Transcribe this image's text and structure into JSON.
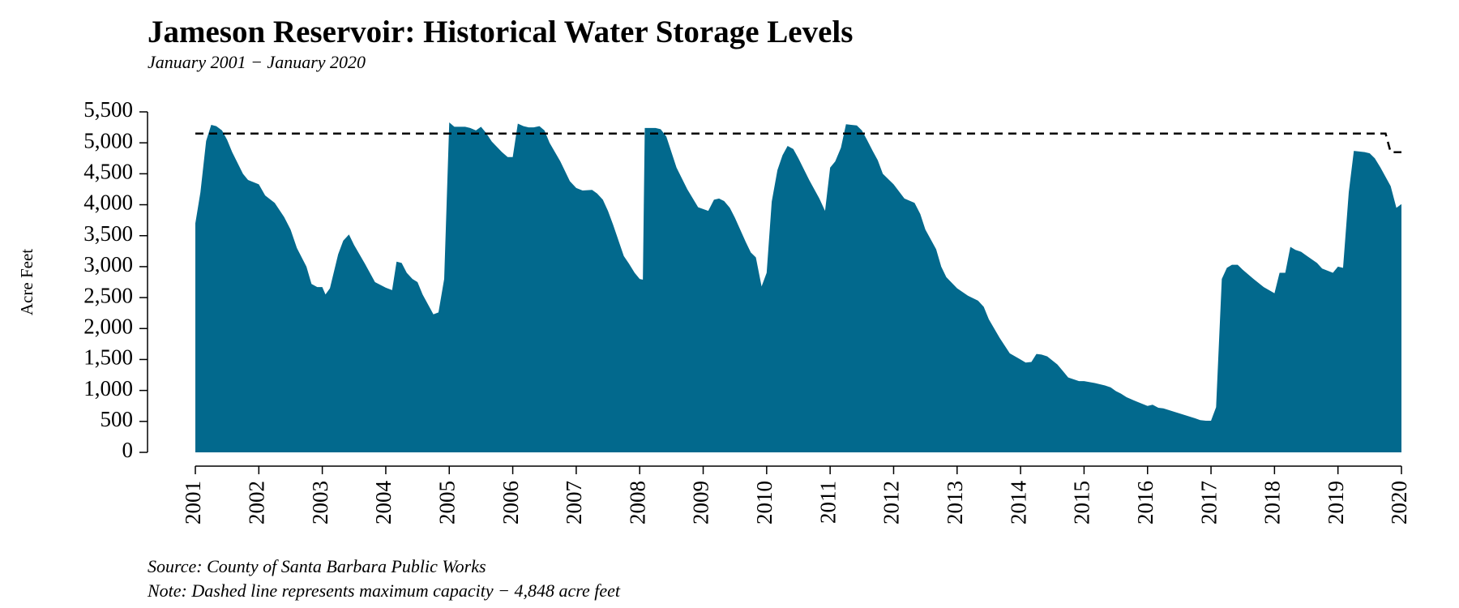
{
  "chart_data": {
    "type": "area",
    "title": "Jameson Reservoir: Historical Water Storage Levels",
    "subtitle": "January 2001 − January 2020",
    "y_label": "Acre Feet",
    "source": "Source: County of Santa Barbara Public Works",
    "note": "Note: Dashed line represents maximum capacity − 4,848 acre feet",
    "xlim": [
      2001,
      2020
    ],
    "xticks": [
      2001,
      2002,
      2003,
      2004,
      2005,
      2006,
      2007,
      2008,
      2009,
      2010,
      2011,
      2012,
      2013,
      2014,
      2015,
      2016,
      2017,
      2018,
      2019,
      2020
    ],
    "ylim": [
      0,
      5500
    ],
    "yticks": [
      0,
      500,
      {
        "value": 1000,
        "label": "1,000"
      },
      {
        "value": 1500,
        "label": "1,500"
      },
      {
        "value": 2000,
        "label": "2,000"
      },
      {
        "value": 2500,
        "label": "2,500"
      },
      {
        "value": 3000,
        "label": "3,000"
      },
      {
        "value": 3500,
        "label": "3,500"
      },
      {
        "value": 4000,
        "label": "4,000"
      },
      {
        "value": 4500,
        "label": "4,500"
      },
      {
        "value": 5000,
        "label": "5,000"
      },
      {
        "value": 5500,
        "label": "5,500"
      }
    ],
    "storage": {
      "color": "#02698d",
      "x": [
        2001.0,
        2001.08,
        2001.17,
        2001.25,
        2001.33,
        2001.42,
        2001.5,
        2001.58,
        2001.75,
        2001.83,
        2002.0,
        2002.1,
        2002.25,
        2002.4,
        2002.5,
        2002.6,
        2002.75,
        2002.83,
        2002.92,
        2003.0,
        2003.05,
        2003.12,
        2003.25,
        2003.33,
        2003.42,
        2003.5,
        2003.67,
        2003.83,
        2004.0,
        2004.1,
        2004.17,
        2004.25,
        2004.33,
        2004.42,
        2004.5,
        2004.58,
        2004.75,
        2004.83,
        2004.92,
        2005.0,
        2005.08,
        2005.25,
        2005.33,
        2005.42,
        2005.5,
        2005.58,
        2005.67,
        2005.83,
        2005.92,
        2006.0,
        2006.08,
        2006.17,
        2006.25,
        2006.33,
        2006.42,
        2006.5,
        2006.58,
        2006.75,
        2006.9,
        2007.0,
        2007.1,
        2007.25,
        2007.33,
        2007.42,
        2007.5,
        2007.58,
        2007.75,
        2007.83,
        2007.92,
        2008.0,
        2008.05,
        2008.08,
        2008.25,
        2008.33,
        2008.42,
        2008.5,
        2008.58,
        2008.75,
        2008.92,
        2009.0,
        2009.08,
        2009.17,
        2009.25,
        2009.33,
        2009.42,
        2009.5,
        2009.67,
        2009.75,
        2009.83,
        2009.92,
        2010.0,
        2010.08,
        2010.17,
        2010.25,
        2010.33,
        2010.42,
        2010.5,
        2010.67,
        2010.83,
        2010.92,
        2011.0,
        2011.08,
        2011.17,
        2011.25,
        2011.33,
        2011.42,
        2011.5,
        2011.58,
        2011.67,
        2011.75,
        2011.83,
        2012.0,
        2012.17,
        2012.33,
        2012.42,
        2012.5,
        2012.67,
        2012.75,
        2012.83,
        2013.0,
        2013.17,
        2013.33,
        2013.42,
        2013.5,
        2013.67,
        2013.83,
        2014.0,
        2014.08,
        2014.17,
        2014.25,
        2014.33,
        2014.42,
        2014.58,
        2014.67,
        2014.75,
        2014.92,
        2015.0,
        2015.17,
        2015.33,
        2015.42,
        2015.5,
        2015.58,
        2015.67,
        2015.83,
        2016.0,
        2016.08,
        2016.17,
        2016.25,
        2016.5,
        2016.75,
        2016.83,
        2016.92,
        2017.0,
        2017.08,
        2017.17,
        2017.25,
        2017.33,
        2017.42,
        2017.5,
        2017.67,
        2017.83,
        2018.0,
        2018.08,
        2018.17,
        2018.25,
        2018.33,
        2018.42,
        2018.5,
        2018.67,
        2018.75,
        2018.92,
        2019.0,
        2019.08,
        2019.17,
        2019.25,
        2019.42,
        2019.5,
        2019.58,
        2019.67,
        2019.83,
        2019.92,
        2020.0
      ],
      "values": [
        3700,
        4200,
        5030,
        5290,
        5270,
        5200,
        5050,
        4850,
        4500,
        4400,
        4330,
        4150,
        4030,
        3800,
        3600,
        3300,
        3000,
        2720,
        2670,
        2670,
        2550,
        2650,
        3200,
        3420,
        3520,
        3350,
        3050,
        2750,
        2660,
        2620,
        3080,
        3060,
        2900,
        2800,
        2750,
        2550,
        2230,
        2260,
        2800,
        5330,
        5260,
        5260,
        5240,
        5200,
        5260,
        5160,
        5020,
        4850,
        4770,
        4770,
        5310,
        5270,
        5250,
        5250,
        5270,
        5200,
        5000,
        4700,
        4380,
        4270,
        4230,
        4240,
        4180,
        4080,
        3900,
        3680,
        3170,
        3050,
        2900,
        2800,
        2790,
        5240,
        5240,
        5220,
        5100,
        4850,
        4600,
        4250,
        3960,
        3930,
        3900,
        4080,
        4100,
        4060,
        3950,
        3790,
        3400,
        3230,
        3150,
        2680,
        2900,
        4050,
        4560,
        4800,
        4950,
        4900,
        4750,
        4400,
        4100,
        3900,
        4600,
        4700,
        4920,
        5300,
        5290,
        5280,
        5200,
        5050,
        4870,
        4720,
        4500,
        4330,
        4100,
        4030,
        3850,
        3600,
        3280,
        3000,
        2830,
        2650,
        2530,
        2450,
        2350,
        2150,
        1850,
        1600,
        1500,
        1450,
        1460,
        1590,
        1580,
        1550,
        1420,
        1310,
        1210,
        1150,
        1150,
        1120,
        1080,
        1050,
        990,
        950,
        890,
        820,
        750,
        770,
        720,
        710,
        630,
        550,
        520,
        510,
        510,
        730,
        2800,
        2980,
        3030,
        3030,
        2950,
        2800,
        2670,
        2570,
        2900,
        2900,
        3320,
        3270,
        3240,
        3180,
        3060,
        2970,
        2900,
        3000,
        2980,
        4200,
        4870,
        4850,
        4830,
        4750,
        4600,
        4300,
        3950,
        4010
      ]
    },
    "capacity": {
      "color": "#000000",
      "x": [
        2001,
        2019.75,
        2019.83,
        2020
      ],
      "values": [
        5150,
        5150,
        4848,
        4848
      ]
    }
  }
}
